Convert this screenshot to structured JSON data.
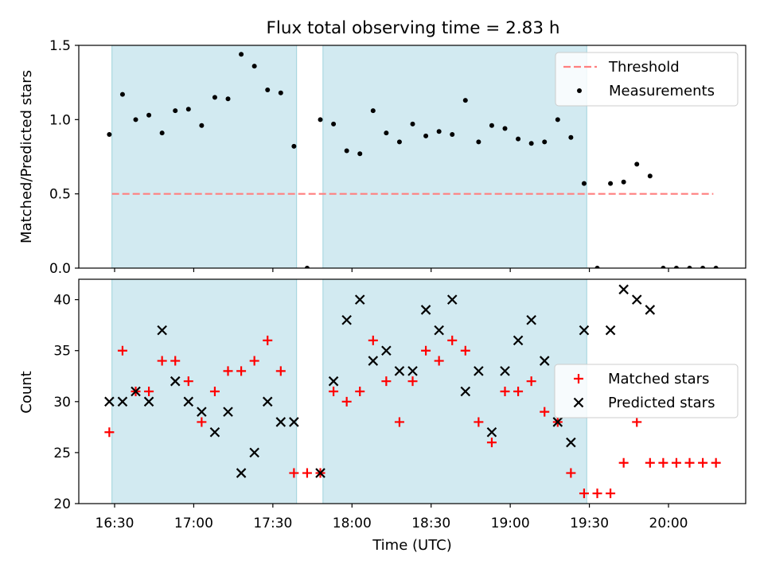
{
  "title": "Flux total observing time = 2.83 h",
  "chart_data": [
    {
      "type": "scatter",
      "panel": "top",
      "ylabel": "Matched/Predicted stars",
      "ylim": [
        0,
        1.5
      ],
      "yticks": [
        "0.0",
        "0.5",
        "1.0",
        "1.5"
      ],
      "threshold": {
        "name": "Threshold",
        "value": 0.5,
        "x_range": [
          "16:29",
          "20:17"
        ],
        "color": "#ff7f7f"
      },
      "shaded_intervals": [
        [
          "16:29",
          "17:39"
        ],
        [
          "17:49",
          "19:29"
        ]
      ],
      "shade_color": "#add8e6",
      "legend": {
        "placement": "top-right",
        "entries": [
          "Threshold",
          "Measurements"
        ]
      },
      "series": [
        {
          "name": "Measurements",
          "color": "#000000",
          "marker": "dot",
          "x": [
            "16:28",
            "16:33",
            "16:38",
            "16:43",
            "16:48",
            "16:53",
            "16:58",
            "17:03",
            "17:08",
            "17:13",
            "17:18",
            "17:23",
            "17:28",
            "17:33",
            "17:38",
            "17:43",
            "17:48",
            "17:53",
            "17:58",
            "18:03",
            "18:08",
            "18:13",
            "18:18",
            "18:23",
            "18:28",
            "18:33",
            "18:38",
            "18:43",
            "18:48",
            "18:53",
            "18:58",
            "19:03",
            "19:08",
            "19:13",
            "19:18",
            "19:23",
            "19:28",
            "19:33",
            "19:38",
            "19:43",
            "19:48",
            "19:53",
            "19:58",
            "20:03",
            "20:08",
            "20:13",
            "20:18"
          ],
          "y": [
            0.9,
            1.17,
            1.0,
            1.03,
            0.91,
            1.06,
            1.07,
            0.96,
            1.15,
            1.14,
            1.44,
            1.36,
            1.2,
            1.18,
            0.82,
            0.0,
            1.0,
            0.97,
            0.79,
            0.77,
            1.06,
            0.91,
            0.85,
            0.97,
            0.89,
            0.92,
            0.9,
            1.13,
            0.85,
            0.96,
            0.94,
            0.87,
            0.84,
            0.85,
            1.0,
            0.88,
            0.57,
            0.0,
            0.57,
            0.58,
            0.7,
            0.62,
            0.0,
            0.0,
            0.0,
            0.0,
            0.0
          ]
        }
      ]
    },
    {
      "type": "scatter",
      "panel": "bottom",
      "xlabel": "Time (UTC)",
      "ylabel": "Count",
      "ylim": [
        20,
        42
      ],
      "yticks": [
        "20",
        "25",
        "30",
        "35",
        "40"
      ],
      "xticks": [
        "16:30",
        "17:00",
        "17:30",
        "18:00",
        "18:30",
        "19:00",
        "19:30",
        "20:00"
      ],
      "shaded_intervals": [
        [
          "16:29",
          "17:39"
        ],
        [
          "17:49",
          "19:29"
        ]
      ],
      "shade_color": "#add8e6",
      "legend": {
        "placement": "center-right",
        "entries": [
          "Matched stars",
          "Predicted stars"
        ]
      },
      "series": [
        {
          "name": "Matched stars",
          "color": "#ff0000",
          "marker": "plus",
          "x": [
            "16:28",
            "16:33",
            "16:38",
            "16:43",
            "16:48",
            "16:53",
            "16:58",
            "17:03",
            "17:08",
            "17:13",
            "17:18",
            "17:23",
            "17:28",
            "17:33",
            "17:38",
            "17:43",
            "17:48",
            "17:53",
            "17:58",
            "18:03",
            "18:08",
            "18:13",
            "18:18",
            "18:23",
            "18:28",
            "18:33",
            "18:38",
            "18:43",
            "18:48",
            "18:53",
            "18:58",
            "19:03",
            "19:08",
            "19:13",
            "19:18",
            "19:23",
            "19:28",
            "19:33",
            "19:38",
            "19:43",
            "19:48",
            "19:53",
            "19:58",
            "20:03",
            "20:08",
            "20:13",
            "20:18"
          ],
          "y": [
            27,
            35,
            31,
            31,
            34,
            34,
            32,
            28,
            31,
            33,
            33,
            34,
            36,
            33,
            23,
            23,
            23,
            31,
            30,
            31,
            36,
            32,
            28,
            32,
            35,
            34,
            36,
            35,
            28,
            26,
            31,
            31,
            32,
            29,
            28,
            23,
            21,
            21,
            21,
            24,
            28,
            24,
            24,
            24,
            24,
            24,
            24
          ]
        },
        {
          "name": "Predicted stars",
          "color": "#000000",
          "marker": "x",
          "x": [
            "16:28",
            "16:33",
            "16:38",
            "16:43",
            "16:48",
            "16:53",
            "16:58",
            "17:03",
            "17:08",
            "17:13",
            "17:18",
            "17:23",
            "17:28",
            "17:33",
            "17:38",
            "17:48",
            "17:53",
            "17:58",
            "18:03",
            "18:08",
            "18:13",
            "18:18",
            "18:23",
            "18:28",
            "18:33",
            "18:38",
            "18:43",
            "18:48",
            "18:53",
            "18:58",
            "19:03",
            "19:08",
            "19:13",
            "19:18",
            "19:23",
            "19:28",
            "19:38",
            "19:43",
            "19:48",
            "19:53"
          ],
          "y": [
            30,
            30,
            31,
            30,
            37,
            32,
            30,
            29,
            27,
            29,
            23,
            25,
            30,
            28,
            28,
            23,
            32,
            38,
            40,
            34,
            35,
            33,
            33,
            39,
            37,
            40,
            31,
            33,
            27,
            33,
            36,
            38,
            34,
            28,
            26,
            37,
            37,
            41,
            40,
            39
          ]
        }
      ]
    }
  ]
}
